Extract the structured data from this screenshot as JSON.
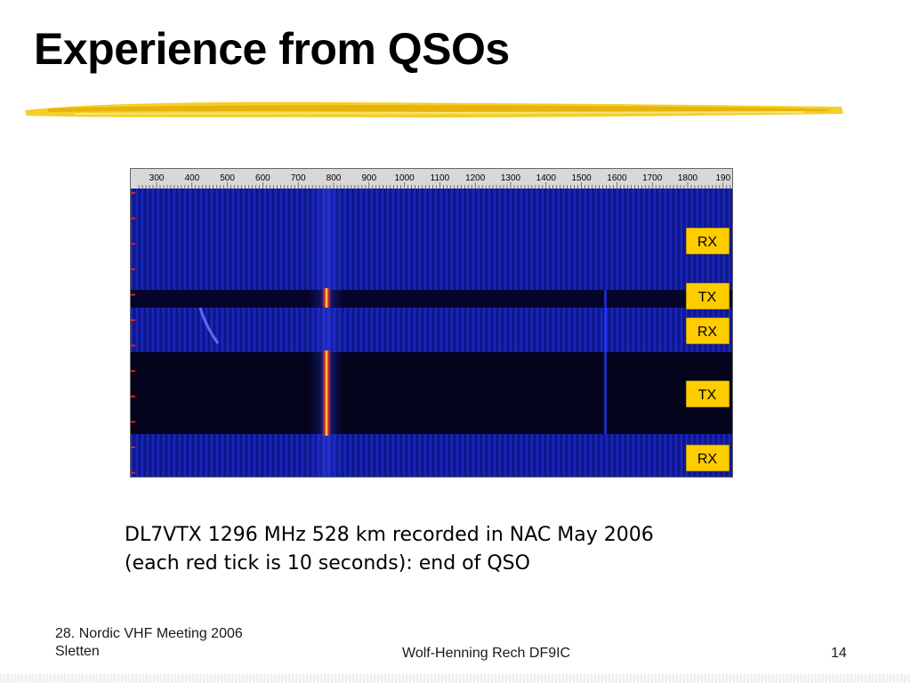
{
  "slide": {
    "title": "Experience from QSOs",
    "caption_line1": "DL7VTX 1296 MHz  528 km  recorded in NAC May 2006",
    "caption_line2": "(each red tick is 10 seconds): end of QSO",
    "footer_left_line1": "28. Nordic VHF Meeting 2006",
    "footer_left_line2": "Sletten",
    "footer_center": "Wolf-Henning Rech  DF9IC",
    "page_number": "14"
  },
  "spectrogram": {
    "scale_ticks": [
      "300",
      "400",
      "500",
      "600",
      "700",
      "800",
      "900",
      "1000",
      "1100",
      "1200",
      "1300",
      "1400",
      "1500",
      "1600",
      "1700",
      "1800",
      "190"
    ],
    "period_labels": [
      "RX",
      "TX",
      "RX",
      "TX",
      "RX"
    ],
    "colors": {
      "background": "#0a0a4a",
      "signal": "#ff6a00",
      "label_bg": "#ffcc00",
      "brush": "#f2c40f"
    }
  }
}
